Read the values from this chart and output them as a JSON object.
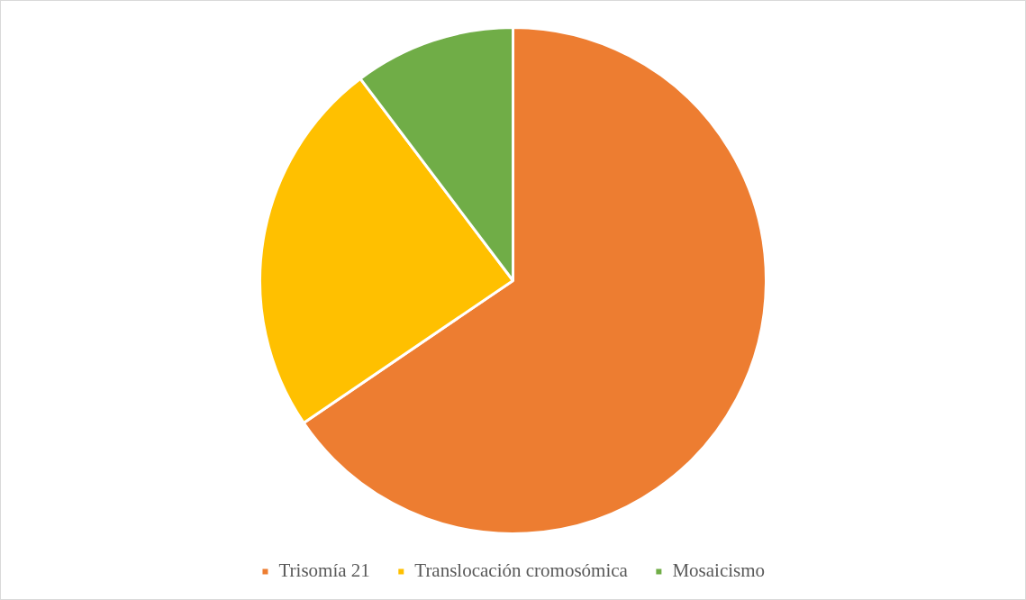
{
  "chart_data": {
    "type": "pie",
    "categories": [
      "Trisomía 21",
      "Translocación cromosómica",
      "Mosaicismo"
    ],
    "values": [
      65.5,
      24.2,
      10.3
    ],
    "colors": [
      "#ed7d31",
      "#ffc000",
      "#70ad47"
    ],
    "legend": "bottom"
  }
}
